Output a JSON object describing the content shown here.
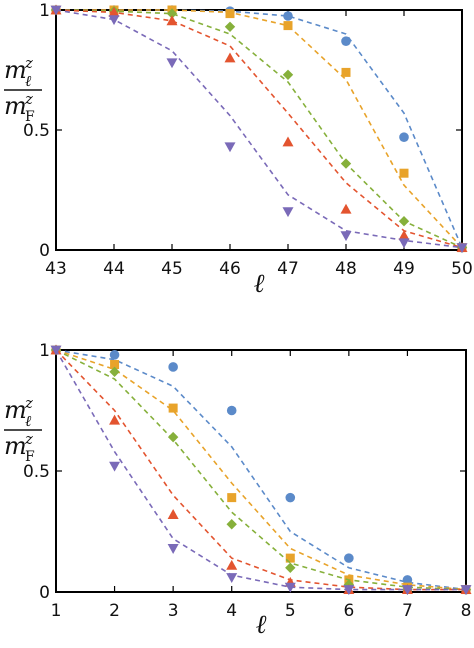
{
  "colors": {
    "blue": "#5b8ac9",
    "orange": "#e8a32a",
    "green": "#86b03b",
    "red": "#e3542f",
    "purple": "#7a6ab8"
  },
  "chart_data": [
    {
      "type": "scatter",
      "xlabel": "ℓ",
      "ylabel": "m_ℓ^z / m_F^z",
      "xlim": [
        43,
        50
      ],
      "ylim": [
        0,
        1
      ],
      "xticks": [
        "43",
        "44",
        "45",
        "46",
        "47",
        "48",
        "49",
        "50"
      ],
      "yticks": [
        "0",
        "0.5",
        "1"
      ],
      "series": [
        {
          "marker": "circle",
          "color": "#5b8ac9",
          "points_x": [
            43,
            44,
            45,
            46,
            47,
            48,
            49,
            50
          ],
          "points_y": [
            1.0,
            1.0,
            1.0,
            0.995,
            0.975,
            0.87,
            0.47,
            0.01
          ],
          "fit_y": [
            1.0,
            1.0,
            1.0,
            0.995,
            0.975,
            0.9,
            0.57,
            0.01
          ]
        },
        {
          "marker": "square",
          "color": "#e8a32a",
          "points_x": [
            43,
            44,
            45,
            46,
            47,
            48,
            49,
            50
          ],
          "points_y": [
            1.0,
            1.0,
            1.0,
            0.985,
            0.935,
            0.74,
            0.32,
            0.01
          ],
          "fit_y": [
            1.0,
            1.0,
            1.0,
            0.99,
            0.935,
            0.71,
            0.27,
            0.01
          ]
        },
        {
          "marker": "diamond",
          "color": "#86b03b",
          "points_x": [
            43,
            44,
            45,
            46,
            47,
            48,
            49,
            50
          ],
          "points_y": [
            1.0,
            0.995,
            0.985,
            0.93,
            0.73,
            0.36,
            0.12,
            0.01
          ],
          "fit_y": [
            1.0,
            0.995,
            0.985,
            0.9,
            0.7,
            0.36,
            0.12,
            0.01
          ]
        },
        {
          "marker": "triangle-up",
          "color": "#e3542f",
          "points_x": [
            43,
            44,
            45,
            46,
            47,
            48,
            49,
            50
          ],
          "points_y": [
            1.0,
            0.99,
            0.955,
            0.8,
            0.45,
            0.17,
            0.06,
            0.01
          ],
          "fit_y": [
            1.0,
            0.99,
            0.955,
            0.85,
            0.57,
            0.28,
            0.08,
            0.01
          ]
        },
        {
          "marker": "triangle-down",
          "color": "#7a6ab8",
          "points_x": [
            43,
            44,
            45,
            46,
            47,
            48,
            49,
            50
          ],
          "points_y": [
            1.0,
            0.96,
            0.78,
            0.43,
            0.16,
            0.06,
            0.03,
            0.01
          ],
          "fit_y": [
            1.0,
            0.96,
            0.83,
            0.56,
            0.23,
            0.08,
            0.04,
            0.01
          ]
        }
      ]
    },
    {
      "type": "scatter",
      "xlabel": "ℓ",
      "ylabel": "m_ℓ^z / m_F^z",
      "xlim": [
        1,
        8
      ],
      "ylim": [
        0,
        1
      ],
      "xticks": [
        "1",
        "2",
        "3",
        "4",
        "5",
        "6",
        "7",
        "8"
      ],
      "yticks": [
        "0",
        "0.5",
        "1"
      ],
      "series": [
        {
          "marker": "circle",
          "color": "#5b8ac9",
          "points_x": [
            1,
            2,
            3,
            4,
            5,
            6,
            7,
            8
          ],
          "points_y": [
            1.0,
            0.98,
            0.93,
            0.75,
            0.39,
            0.14,
            0.05,
            0.01
          ],
          "fit_y": [
            1.0,
            0.96,
            0.85,
            0.6,
            0.25,
            0.1,
            0.04,
            0.01
          ]
        },
        {
          "marker": "square",
          "color": "#e8a32a",
          "points_x": [
            1,
            2,
            3,
            4,
            5,
            6,
            7,
            8
          ],
          "points_y": [
            1.0,
            0.94,
            0.76,
            0.39,
            0.14,
            0.05,
            0.02,
            0.01
          ],
          "fit_y": [
            1.0,
            0.92,
            0.75,
            0.45,
            0.18,
            0.07,
            0.03,
            0.01
          ]
        },
        {
          "marker": "diamond",
          "color": "#86b03b",
          "points_x": [
            1,
            2,
            3,
            4,
            5,
            6,
            7,
            8
          ],
          "points_y": [
            1.0,
            0.91,
            0.64,
            0.28,
            0.1,
            0.03,
            0.01,
            0.01
          ],
          "fit_y": [
            1.0,
            0.88,
            0.63,
            0.33,
            0.12,
            0.05,
            0.02,
            0.01
          ]
        },
        {
          "marker": "triangle-up",
          "color": "#e3542f",
          "points_x": [
            1,
            2,
            3,
            4,
            5,
            6,
            7,
            8
          ],
          "points_y": [
            1.0,
            0.71,
            0.32,
            0.11,
            0.04,
            0.01,
            0.01,
            0.01
          ],
          "fit_y": [
            1.0,
            0.75,
            0.4,
            0.14,
            0.05,
            0.02,
            0.01,
            0.01
          ]
        },
        {
          "marker": "triangle-down",
          "color": "#7a6ab8",
          "points_x": [
            1,
            2,
            3,
            4,
            5,
            6,
            7,
            8
          ],
          "points_y": [
            1.0,
            0.52,
            0.18,
            0.06,
            0.02,
            0.01,
            0.01,
            0.01
          ],
          "fit_y": [
            1.0,
            0.58,
            0.22,
            0.07,
            0.02,
            0.01,
            0.01,
            0.01
          ]
        }
      ]
    }
  ]
}
